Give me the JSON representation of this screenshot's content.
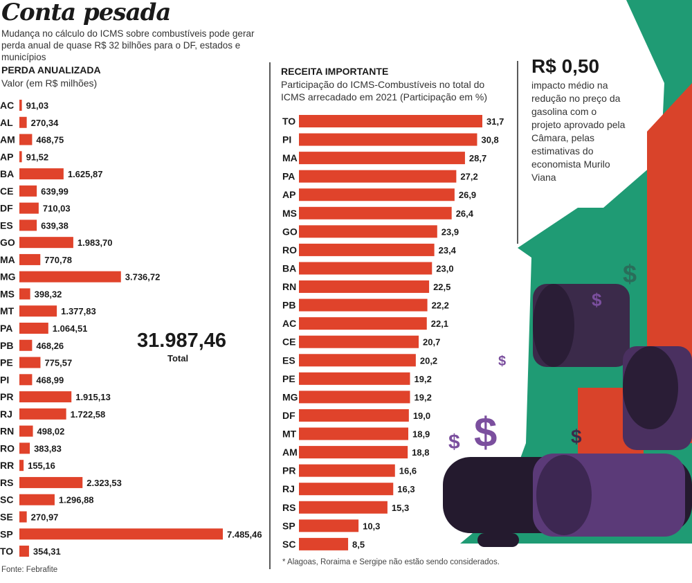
{
  "header": {
    "title": "Conta pesada",
    "subtitle": "Mudança no cálculo do ICMS sobre combustíveis pode gerar perda anual de quase R$ 32 bilhões para o DF, estados e municípios"
  },
  "highlight": {
    "value": "R$ 0,50",
    "description": "impacto médio na redução no preço da gasolina com o projeto aprovado pela Câmara, pelas estimativas do economista Murilo Viana"
  },
  "colors": {
    "bar": "#e0432b",
    "green": "#1f9b74",
    "red": "#d9432a",
    "barrel": "#3b2a4a"
  },
  "chart_data": [
    {
      "type": "bar",
      "orientation": "horizontal",
      "title": "PERDA ANUALIZADA",
      "subtitle": "Valor (em R$ milhões)",
      "categories": [
        "AC",
        "AL",
        "AM",
        "AP",
        "BA",
        "CE",
        "DF",
        "ES",
        "GO",
        "MA",
        "MG",
        "MS",
        "MT",
        "PA",
        "PB",
        "PE",
        "PI",
        "PR",
        "RJ",
        "RN",
        "RO",
        "RR",
        "RS",
        "SC",
        "SE",
        "SP",
        "TO"
      ],
      "values": [
        91.03,
        270.34,
        468.75,
        91.52,
        1625.87,
        639.99,
        710.03,
        639.38,
        1983.7,
        770.78,
        3736.72,
        398.32,
        1377.83,
        1064.51,
        468.26,
        775.57,
        468.99,
        1915.13,
        1722.58,
        498.02,
        383.83,
        155.16,
        2323.53,
        1296.88,
        270.97,
        7485.46,
        354.31
      ],
      "labels": [
        "91,03",
        "270,34",
        "468,75",
        "91,52",
        "1.625,87",
        "639,99",
        "710,03",
        "639,38",
        "1.983,70",
        "770,78",
        "3.736,72",
        "398,32",
        "1.377,83",
        "1.064,51",
        "468,26",
        "775,57",
        "468,99",
        "1.915,13",
        "1.722,58",
        "498,02",
        "383,83",
        "155,16",
        "2.323,53",
        "1.296,88",
        "270,97",
        "7.485,46",
        "354,31"
      ],
      "total_value": "31.987,46",
      "total_label": "Total",
      "source": "Fonte: Febrafite"
    },
    {
      "type": "bar",
      "orientation": "horizontal",
      "title": "RECEITA IMPORTANTE",
      "subtitle": "Participação do ICMS-Combustíveis no total do ICMS arrecadado em 2021 (Participação em %)",
      "categories": [
        "TO",
        "PI",
        "MA",
        "PA",
        "AP",
        "MS",
        "GO",
        "RO",
        "BA",
        "RN",
        "PB",
        "AC",
        "CE",
        "ES",
        "PE",
        "MG",
        "DF",
        "MT",
        "AM",
        "PR",
        "RJ",
        "RS",
        "SP",
        "SC"
      ],
      "values": [
        31.7,
        30.8,
        28.7,
        27.2,
        26.9,
        26.4,
        23.9,
        23.4,
        23.0,
        22.5,
        22.2,
        22.1,
        20.7,
        20.2,
        19.2,
        19.2,
        19.0,
        18.9,
        18.8,
        16.6,
        16.3,
        15.3,
        10.3,
        8.5
      ],
      "labels": [
        "31,7",
        "30,8",
        "28,7",
        "27,2",
        "26,9",
        "26,4",
        "23,9",
        "23,4",
        "23,0",
        "22,5",
        "22,2",
        "22,1",
        "20,7",
        "20,2",
        "19,2",
        "19,2",
        "19,0",
        "18,9",
        "18,8",
        "16,6",
        "16,3",
        "15,3",
        "10,3",
        "8,5"
      ],
      "footnote": "* Alagoas, Roraima e Sergipe não estão sendo considerados."
    }
  ]
}
